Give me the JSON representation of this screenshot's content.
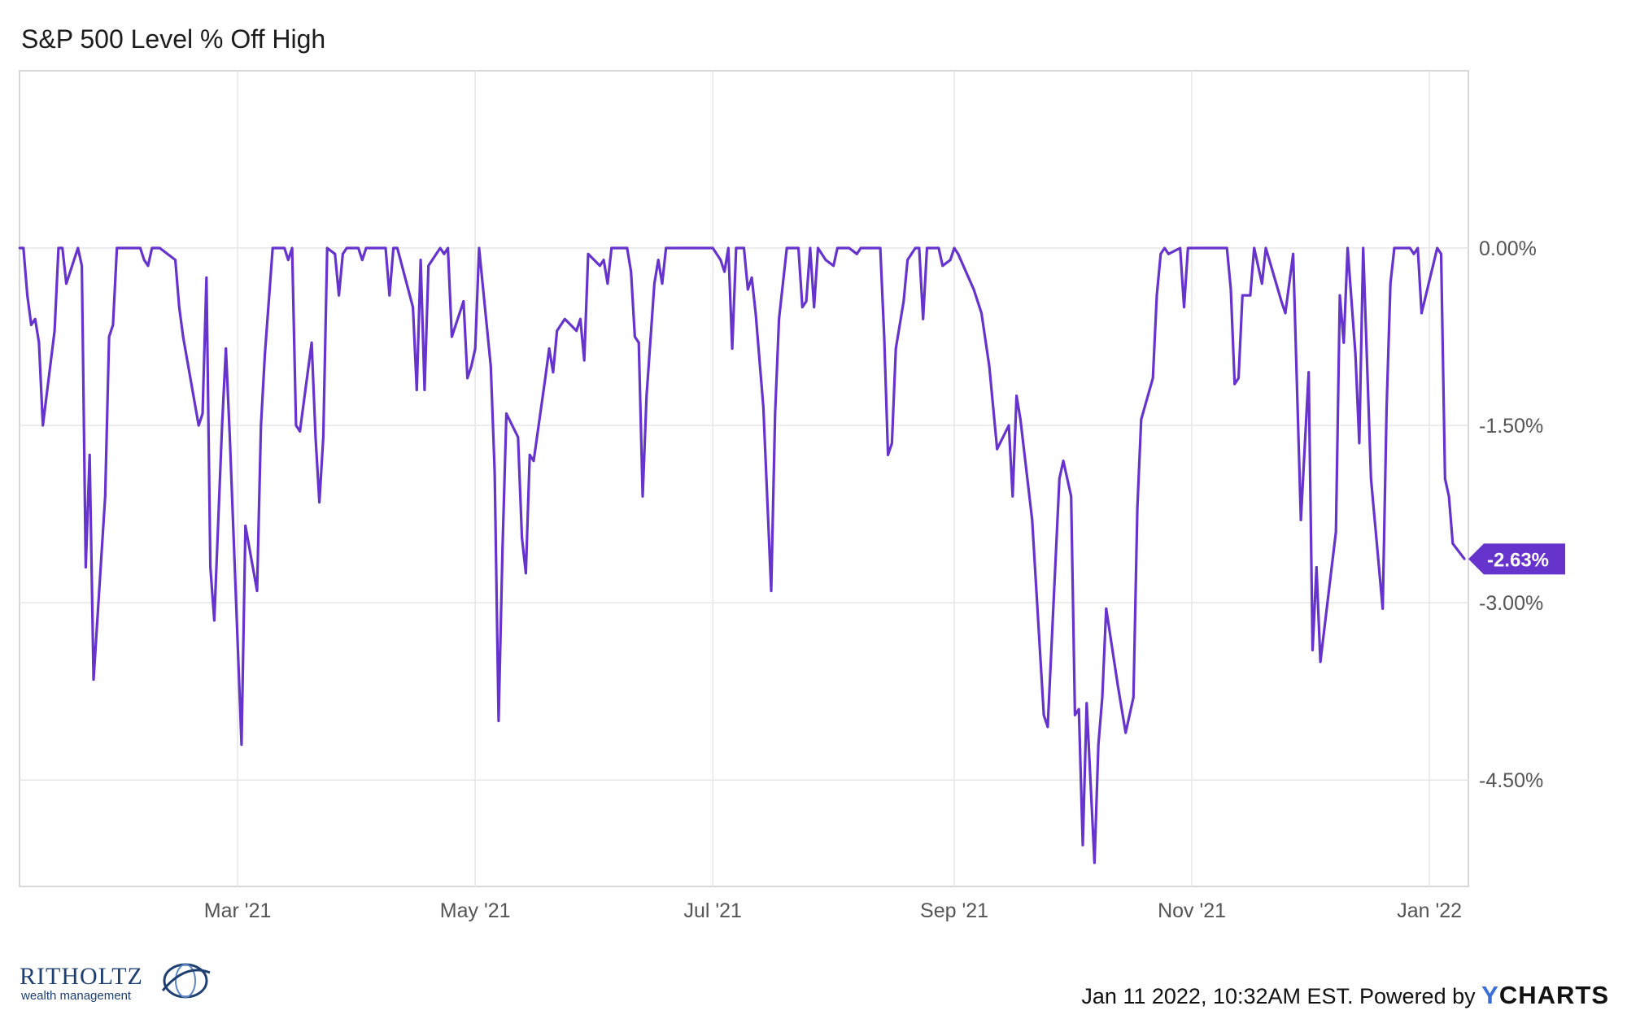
{
  "title": "S&P 500 Level % Off High",
  "footer": {
    "text": "Jan 11 2022, 10:32AM EST. Powered by",
    "brand_y": "Y",
    "brand_rest": "CHARTS"
  },
  "logo": {
    "name": "RITHOLTZ",
    "sub": "wealth management"
  },
  "colors": {
    "line": "#6633cc",
    "grid": "#e6e6e6",
    "axis": "#cccccc"
  },
  "chart_data": {
    "type": "line",
    "title": "S&P 500 Level % Off High",
    "ylim": [
      -5.4,
      1.5
    ],
    "xlim": [
      "2021-01-04",
      "2022-01-11"
    ],
    "grid": true,
    "legend": "none",
    "y_ticks": [
      {
        "value": 0,
        "label": "0.00%"
      },
      {
        "value": -1.5,
        "label": "-1.50%"
      },
      {
        "value": -3,
        "label": "-3.00%"
      },
      {
        "value": -4.5,
        "label": "-4.50%"
      }
    ],
    "x_ticks": [
      {
        "date": "2021-03-01",
        "label": "Mar '21"
      },
      {
        "date": "2021-05-01",
        "label": "May '21"
      },
      {
        "date": "2021-07-01",
        "label": "Jul '21"
      },
      {
        "date": "2021-09-01",
        "label": "Sep '21"
      },
      {
        "date": "2021-11-01",
        "label": "Nov '21"
      },
      {
        "date": "2022-01-01",
        "label": "Jan '22"
      }
    ],
    "last_value_label": "-2.63%",
    "series": [
      {
        "values": [
          [
            "2021-01-04",
            0
          ],
          [
            "2021-01-05",
            0
          ],
          [
            "2021-01-06",
            -0.4
          ],
          [
            "2021-01-07",
            -0.65
          ],
          [
            "2021-01-08",
            -0.6
          ],
          [
            "2021-01-09",
            -0.8
          ],
          [
            "2021-01-10",
            -1.5
          ],
          [
            "2021-01-13",
            -0.7
          ],
          [
            "2021-01-14",
            0
          ],
          [
            "2021-01-15",
            0
          ],
          [
            "2021-01-16",
            -0.3
          ],
          [
            "2021-01-19",
            0
          ],
          [
            "2021-01-20",
            -0.15
          ],
          [
            "2021-01-21",
            -2.7
          ],
          [
            "2021-01-22",
            -1.75
          ],
          [
            "2021-01-23",
            -3.65
          ],
          [
            "2021-01-26",
            -2.1
          ],
          [
            "2021-01-27",
            -0.75
          ],
          [
            "2021-01-28",
            -0.65
          ],
          [
            "2021-01-29",
            0
          ],
          [
            "2021-02-02",
            0
          ],
          [
            "2021-02-04",
            0
          ],
          [
            "2021-02-05",
            -0.1
          ],
          [
            "2021-02-06",
            -0.15
          ],
          [
            "2021-02-07",
            0
          ],
          [
            "2021-02-09",
            0
          ],
          [
            "2021-02-13",
            -0.1
          ],
          [
            "2021-02-14",
            -0.5
          ],
          [
            "2021-02-15",
            -0.75
          ],
          [
            "2021-02-19",
            -1.5
          ],
          [
            "2021-02-20",
            -1.4
          ],
          [
            "2021-02-21",
            -0.25
          ],
          [
            "2021-02-22",
            -2.7
          ],
          [
            "2021-02-23",
            -3.15
          ],
          [
            "2021-02-25",
            -1.5
          ],
          [
            "2021-02-26",
            -0.85
          ],
          [
            "2021-02-27",
            -1.6
          ],
          [
            "2021-03-02",
            -4.2
          ],
          [
            "2021-03-03",
            -2.35
          ],
          [
            "2021-03-06",
            -2.9
          ],
          [
            "2021-03-07",
            -1.5
          ],
          [
            "2021-03-08",
            -0.9
          ],
          [
            "2021-03-10",
            0
          ],
          [
            "2021-03-13",
            0
          ],
          [
            "2021-03-14",
            -0.1
          ],
          [
            "2021-03-15",
            0
          ],
          [
            "2021-03-16",
            -1.5
          ],
          [
            "2021-03-17",
            -1.55
          ],
          [
            "2021-03-20",
            -0.8
          ],
          [
            "2021-03-21",
            -1.6
          ],
          [
            "2021-03-22",
            -2.15
          ],
          [
            "2021-03-23",
            -1.6
          ],
          [
            "2021-03-24",
            0
          ],
          [
            "2021-03-26",
            -0.05
          ],
          [
            "2021-03-27",
            -0.4
          ],
          [
            "2021-03-28",
            -0.05
          ],
          [
            "2021-03-29",
            0
          ],
          [
            "2021-04-01",
            0
          ],
          [
            "2021-04-02",
            -0.1
          ],
          [
            "2021-04-03",
            0
          ],
          [
            "2021-04-05",
            0
          ],
          [
            "2021-04-08",
            0
          ],
          [
            "2021-04-09",
            -0.4
          ],
          [
            "2021-04-10",
            0
          ],
          [
            "2021-04-11",
            0
          ],
          [
            "2021-04-15",
            -0.5
          ],
          [
            "2021-04-16",
            -1.2
          ],
          [
            "2021-04-17",
            -0.1
          ],
          [
            "2021-04-18",
            -1.2
          ],
          [
            "2021-04-19",
            -0.15
          ],
          [
            "2021-04-22",
            0
          ],
          [
            "2021-04-23",
            -0.05
          ],
          [
            "2021-04-24",
            0
          ],
          [
            "2021-04-25",
            -0.75
          ],
          [
            "2021-04-28",
            -0.45
          ],
          [
            "2021-04-29",
            -1.1
          ],
          [
            "2021-04-30",
            -1.0
          ],
          [
            "2021-05-01",
            -0.85
          ],
          [
            "2021-05-02",
            0
          ],
          [
            "2021-05-05",
            -1.0
          ],
          [
            "2021-05-06",
            -1.9
          ],
          [
            "2021-05-07",
            -4.0
          ],
          [
            "2021-05-08",
            -2.55
          ],
          [
            "2021-05-09",
            -1.4
          ],
          [
            "2021-05-12",
            -1.6
          ],
          [
            "2021-05-13",
            -2.45
          ],
          [
            "2021-05-14",
            -2.75
          ],
          [
            "2021-05-15",
            -1.75
          ],
          [
            "2021-05-16",
            -1.8
          ],
          [
            "2021-05-19",
            -1.1
          ],
          [
            "2021-05-20",
            -0.85
          ],
          [
            "2021-05-21",
            -1.05
          ],
          [
            "2021-05-22",
            -0.7
          ],
          [
            "2021-05-24",
            -0.6
          ],
          [
            "2021-05-27",
            -0.7
          ],
          [
            "2021-05-28",
            -0.6
          ],
          [
            "2021-05-29",
            -0.95
          ],
          [
            "2021-05-30",
            -0.05
          ],
          [
            "2021-06-02",
            -0.15
          ],
          [
            "2021-06-03",
            -0.1
          ],
          [
            "2021-06-04",
            -0.3
          ],
          [
            "2021-06-05",
            0
          ],
          [
            "2021-06-09",
            0
          ],
          [
            "2021-06-10",
            -0.2
          ],
          [
            "2021-06-11",
            -0.75
          ],
          [
            "2021-06-12",
            -0.8
          ],
          [
            "2021-06-13",
            -2.1
          ],
          [
            "2021-06-14",
            -1.25
          ],
          [
            "2021-06-16",
            -0.3
          ],
          [
            "2021-06-17",
            -0.1
          ],
          [
            "2021-06-18",
            -0.3
          ],
          [
            "2021-06-19",
            0
          ],
          [
            "2021-06-23",
            0
          ],
          [
            "2021-06-28",
            0
          ],
          [
            "2021-07-01",
            0
          ],
          [
            "2021-07-03",
            -0.1
          ],
          [
            "2021-07-04",
            -0.2
          ],
          [
            "2021-07-05",
            0
          ],
          [
            "2021-07-06",
            -0.85
          ],
          [
            "2021-07-07",
            0
          ],
          [
            "2021-07-09",
            0
          ],
          [
            "2021-07-10",
            -0.35
          ],
          [
            "2021-07-11",
            -0.25
          ],
          [
            "2021-07-12",
            -0.55
          ],
          [
            "2021-07-14",
            -1.35
          ],
          [
            "2021-07-16",
            -2.9
          ],
          [
            "2021-07-17",
            -1.4
          ],
          [
            "2021-07-18",
            -0.6
          ],
          [
            "2021-07-19",
            -0.3
          ],
          [
            "2021-07-20",
            0
          ],
          [
            "2021-07-23",
            0
          ],
          [
            "2021-07-24",
            -0.5
          ],
          [
            "2021-07-25",
            -0.45
          ],
          [
            "2021-07-26",
            0
          ],
          [
            "2021-07-27",
            -0.5
          ],
          [
            "2021-07-28",
            0
          ],
          [
            "2021-07-30",
            -0.1
          ],
          [
            "2021-08-01",
            -0.15
          ],
          [
            "2021-08-02",
            0
          ],
          [
            "2021-08-05",
            0
          ],
          [
            "2021-08-07",
            -0.05
          ],
          [
            "2021-08-08",
            0
          ],
          [
            "2021-08-13",
            0
          ],
          [
            "2021-08-14",
            -0.75
          ],
          [
            "2021-08-15",
            -1.75
          ],
          [
            "2021-08-16",
            -1.65
          ],
          [
            "2021-08-17",
            -0.85
          ],
          [
            "2021-08-19",
            -0.45
          ],
          [
            "2021-08-20",
            -0.1
          ],
          [
            "2021-08-22",
            0
          ],
          [
            "2021-08-23",
            0
          ],
          [
            "2021-08-24",
            -0.6
          ],
          [
            "2021-08-25",
            0
          ],
          [
            "2021-08-28",
            0
          ],
          [
            "2021-08-29",
            -0.15
          ],
          [
            "2021-08-31",
            -0.1
          ],
          [
            "2021-09-01",
            0
          ],
          [
            "2021-09-02",
            -0.05
          ],
          [
            "2021-09-06",
            -0.35
          ],
          [
            "2021-09-08",
            -0.55
          ],
          [
            "2021-09-10",
            -1.0
          ],
          [
            "2021-09-12",
            -1.7
          ],
          [
            "2021-09-15",
            -1.5
          ],
          [
            "2021-09-16",
            -2.1
          ],
          [
            "2021-09-17",
            -1.25
          ],
          [
            "2021-09-18",
            -1.45
          ],
          [
            "2021-09-21",
            -2.3
          ],
          [
            "2021-09-24",
            -3.95
          ],
          [
            "2021-09-25",
            -4.05
          ],
          [
            "2021-09-28",
            -1.95
          ],
          [
            "2021-09-29",
            -1.8
          ],
          [
            "2021-10-01",
            -2.1
          ],
          [
            "2021-10-02",
            -3.95
          ],
          [
            "2021-10-03",
            -3.9
          ],
          [
            "2021-10-04",
            -5.05
          ],
          [
            "2021-10-05",
            -3.85
          ],
          [
            "2021-10-07",
            -5.2
          ],
          [
            "2021-10-08",
            -4.2
          ],
          [
            "2021-10-09",
            -3.8
          ],
          [
            "2021-10-10",
            -3.05
          ],
          [
            "2021-10-13",
            -3.7
          ],
          [
            "2021-10-15",
            -4.1
          ],
          [
            "2021-10-17",
            -3.8
          ],
          [
            "2021-10-18",
            -2.2
          ],
          [
            "2021-10-19",
            -1.45
          ],
          [
            "2021-10-22",
            -1.1
          ],
          [
            "2021-10-23",
            -0.4
          ],
          [
            "2021-10-24",
            -0.05
          ],
          [
            "2021-10-25",
            0
          ],
          [
            "2021-10-26",
            -0.05
          ],
          [
            "2021-10-29",
            0
          ],
          [
            "2021-10-30",
            -0.5
          ],
          [
            "2021-10-31",
            0
          ],
          [
            "2021-11-04",
            0
          ],
          [
            "2021-11-10",
            0
          ],
          [
            "2021-11-11",
            -0.35
          ],
          [
            "2021-11-12",
            -1.15
          ],
          [
            "2021-11-13",
            -1.1
          ],
          [
            "2021-11-14",
            -0.4
          ],
          [
            "2021-11-16",
            -0.4
          ],
          [
            "2021-11-17",
            0
          ],
          [
            "2021-11-19",
            -0.3
          ],
          [
            "2021-11-20",
            0
          ],
          [
            "2021-11-24",
            -0.45
          ],
          [
            "2021-11-25",
            -0.55
          ],
          [
            "2021-11-27",
            -0.05
          ],
          [
            "2021-11-29",
            -2.3
          ],
          [
            "2021-12-01",
            -1.05
          ],
          [
            "2021-12-02",
            -3.4
          ],
          [
            "2021-12-03",
            -2.7
          ],
          [
            "2021-12-04",
            -3.5
          ],
          [
            "2021-12-08",
            -2.4
          ],
          [
            "2021-12-09",
            -0.4
          ],
          [
            "2021-12-10",
            -0.8
          ],
          [
            "2021-12-11",
            0
          ],
          [
            "2021-12-13",
            -0.9
          ],
          [
            "2021-12-14",
            -1.65
          ],
          [
            "2021-12-15",
            0
          ],
          [
            "2021-12-17",
            -1.95
          ],
          [
            "2021-12-20",
            -3.05
          ],
          [
            "2021-12-21",
            -1.35
          ],
          [
            "2021-12-22",
            -0.3
          ],
          [
            "2021-12-23",
            0
          ],
          [
            "2021-12-27",
            0
          ],
          [
            "2021-12-28",
            -0.05
          ],
          [
            "2021-12-29",
            0
          ],
          [
            "2021-12-30",
            -0.55
          ],
          [
            "2022-01-03",
            0
          ],
          [
            "2022-01-04",
            -0.05
          ],
          [
            "2022-01-05",
            -1.95
          ],
          [
            "2022-01-06",
            -2.1
          ],
          [
            "2022-01-07",
            -2.5
          ],
          [
            "2022-01-10",
            -2.63
          ]
        ]
      }
    ]
  }
}
